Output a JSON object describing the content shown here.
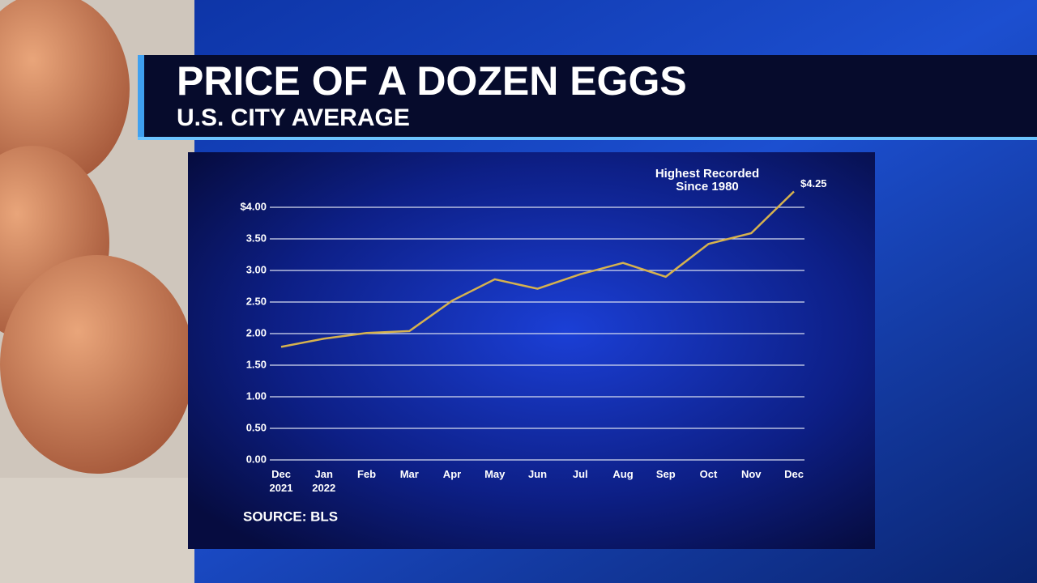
{
  "chart_data": {
    "type": "line",
    "title": "PRICE OF A DOZEN EGGS",
    "subtitle": "U.S. CITY AVERAGE",
    "categories": [
      "Dec\n2021",
      "Jan\n2022",
      "Feb",
      "Mar",
      "Apr",
      "May",
      "Jun",
      "Jul",
      "Aug",
      "Sep",
      "Oct",
      "Nov",
      "Dec"
    ],
    "series": [
      {
        "name": "Price",
        "color": "#d6b24e",
        "values": [
          1.79,
          1.92,
          2.01,
          2.04,
          2.52,
          2.86,
          2.71,
          2.94,
          3.12,
          2.9,
          3.42,
          3.59,
          4.25
        ],
        "value_labels": [
          null,
          null,
          null,
          null,
          null,
          null,
          null,
          null,
          null,
          null,
          null,
          null,
          "$4.25"
        ]
      }
    ],
    "ylim": [
      0,
      4.4
    ],
    "yticks": [
      {
        "value": 0,
        "label": "0.00"
      },
      {
        "value": 0.5,
        "label": "0.50"
      },
      {
        "value": 1,
        "label": "1.00"
      },
      {
        "value": 1.5,
        "label": "1.50"
      },
      {
        "value": 2,
        "label": "2.00"
      },
      {
        "value": 2.5,
        "label": "2.50"
      },
      {
        "value": 3,
        "label": "3.00"
      },
      {
        "value": 3.5,
        "label": "3.50"
      },
      {
        "value": 4,
        "label": "$4.00"
      }
    ],
    "grid": true,
    "annotation": "Highest Recorded\nSince 1980",
    "source": "SOURCE: BLS"
  }
}
